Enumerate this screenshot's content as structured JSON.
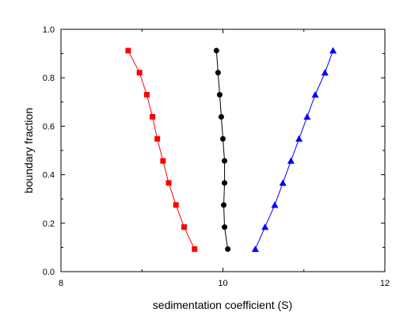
{
  "chart_data": {
    "type": "scatter",
    "title": "",
    "xlabel": "sedimentation coefficient (S)",
    "ylabel": "boundary fraction",
    "xlim": [
      8,
      12
    ],
    "ylim": [
      0,
      1.0
    ],
    "x_ticks": [
      "8",
      "10",
      "12"
    ],
    "y_ticks": [
      "0.0",
      "0.2",
      "0.4",
      "0.6",
      "0.8",
      "1.0"
    ],
    "grid": false,
    "legend": "none",
    "series": [
      {
        "color": "#ff0000",
        "marker": "square",
        "x": [
          9.65,
          9.52,
          9.42,
          9.33,
          9.26,
          9.19,
          9.13,
          9.06,
          8.97,
          8.83
        ],
        "y": [
          0.093,
          0.184,
          0.275,
          0.366,
          0.457,
          0.548,
          0.639,
          0.73,
          0.821,
          0.912
        ]
      },
      {
        "color": "#000000",
        "marker": "circle",
        "x": [
          10.06,
          10.02,
          10.01,
          10.02,
          10.02,
          10.0,
          9.98,
          9.96,
          9.94,
          9.92
        ],
        "y": [
          0.093,
          0.184,
          0.275,
          0.366,
          0.457,
          0.548,
          0.639,
          0.73,
          0.821,
          0.912
        ]
      },
      {
        "color": "#0000ff",
        "marker": "triangle",
        "x": [
          10.4,
          10.52,
          10.64,
          10.74,
          10.84,
          10.94,
          11.04,
          11.14,
          11.26,
          11.36
        ],
        "y": [
          0.093,
          0.184,
          0.275,
          0.366,
          0.457,
          0.548,
          0.639,
          0.73,
          0.821,
          0.912
        ]
      }
    ]
  }
}
